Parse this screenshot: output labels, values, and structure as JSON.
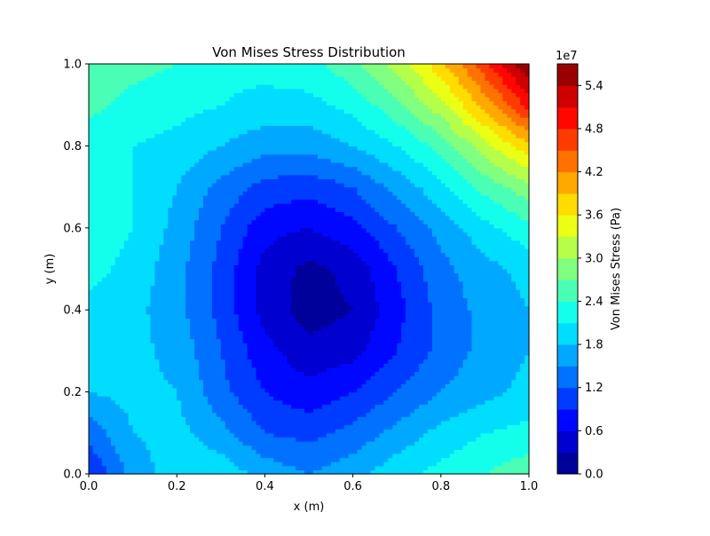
{
  "chart_data": {
    "type": "heatmap",
    "subtype": "filled-contour",
    "title": "Von Mises Stress Distribution",
    "xlabel": "x (m)",
    "ylabel": "y (m)",
    "xlim": [
      0.0,
      1.0
    ],
    "ylim": [
      0.0,
      1.0
    ],
    "x_ticks": [
      "0.0",
      "0.2",
      "0.4",
      "0.6",
      "0.8",
      "1.0"
    ],
    "y_ticks": [
      "0.0",
      "0.2",
      "0.4",
      "0.6",
      "0.8",
      "1.0"
    ],
    "grid": false,
    "colormap": "jet",
    "colorbar": {
      "label": "Von Mises Stress (Pa)",
      "offset_label": "1e7",
      "multiplier": 10000000,
      "range": [
        0.0,
        5.7
      ],
      "ticks": [
        "0.0",
        "0.6",
        "1.2",
        "1.8",
        "2.4",
        "3.0",
        "3.6",
        "4.2",
        "4.8",
        "5.4"
      ],
      "level_step": 0.3,
      "levels": 19
    },
    "field": {
      "description_units": "values in 1e7 Pa sampled on an 11x11 grid, x from 0.0 to 1.0 (columns), y from 0.0 to 1.0 (rows, first row y=0.0)",
      "x": [
        0.0,
        0.1,
        0.2,
        0.3,
        0.4,
        0.5,
        0.6,
        0.7,
        0.8,
        0.9,
        1.0
      ],
      "y": [
        0.0,
        0.1,
        0.2,
        0.3,
        0.4,
        0.5,
        0.6,
        0.7,
        0.8,
        0.9,
        1.0
      ],
      "values": [
        [
          0.9,
          1.6,
          2.0,
          2.0,
          1.7,
          1.5,
          1.7,
          2.0,
          2.2,
          2.4,
          2.6
        ],
        [
          1.3,
          1.8,
          1.9,
          1.6,
          1.2,
          1.1,
          1.3,
          1.6,
          1.9,
          2.1,
          2.2
        ],
        [
          1.8,
          1.9,
          1.8,
          1.3,
          0.9,
          0.7,
          0.9,
          1.2,
          1.5,
          1.7,
          1.9
        ],
        [
          2.0,
          1.9,
          1.7,
          1.2,
          0.7,
          0.4,
          0.5,
          0.9,
          1.3,
          1.6,
          1.8
        ],
        [
          2.0,
          1.9,
          1.6,
          1.1,
          0.5,
          0.15,
          0.3,
          0.8,
          1.3,
          1.6,
          1.8
        ],
        [
          2.2,
          2.0,
          1.6,
          1.1,
          0.5,
          0.2,
          0.4,
          0.9,
          1.4,
          1.7,
          1.9
        ],
        [
          2.3,
          2.1,
          1.7,
          1.2,
          0.7,
          0.6,
          0.8,
          1.2,
          1.6,
          2.0,
          2.3
        ],
        [
          2.2,
          2.1,
          1.8,
          1.4,
          1.1,
          1.0,
          1.2,
          1.6,
          2.0,
          2.5,
          2.9
        ],
        [
          2.2,
          2.1,
          2.0,
          1.8,
          1.6,
          1.6,
          1.8,
          2.1,
          2.5,
          3.2,
          3.8
        ],
        [
          2.5,
          2.3,
          2.2,
          2.1,
          2.0,
          2.0,
          2.2,
          2.6,
          3.2,
          4.0,
          4.9
        ],
        [
          2.6,
          2.5,
          2.4,
          2.2,
          2.2,
          2.3,
          2.6,
          3.1,
          3.8,
          4.7,
          5.7
        ]
      ]
    }
  }
}
